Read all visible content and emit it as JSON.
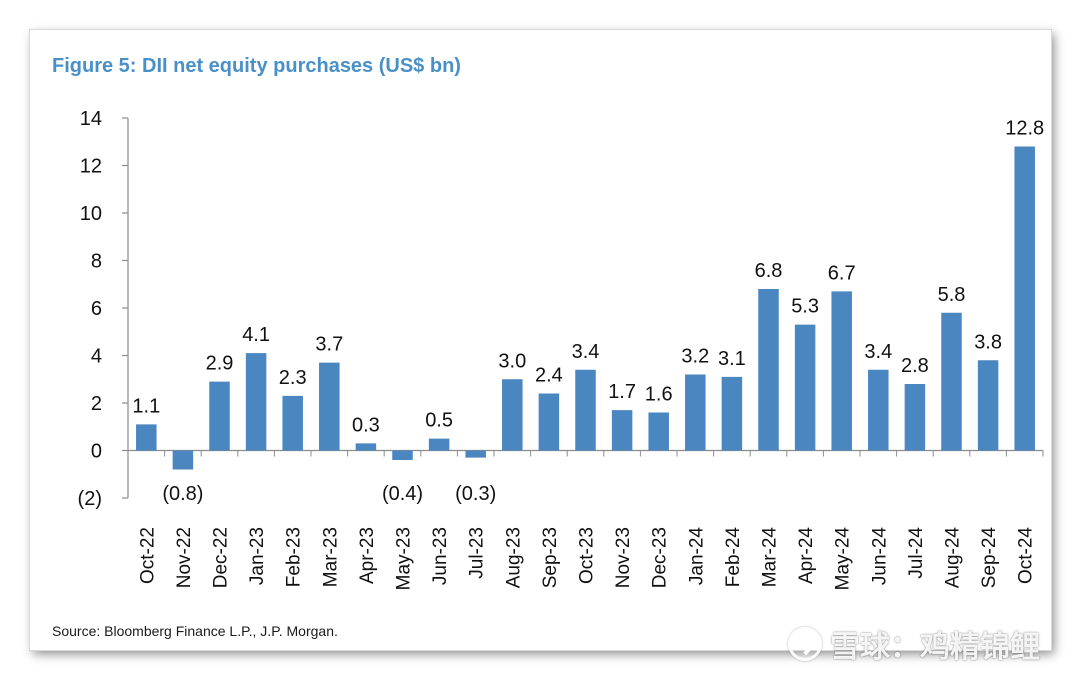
{
  "chart_data": {
    "type": "bar",
    "title": "Figure 5: DII net equity purchases (US$ bn)",
    "xlabel": "",
    "ylabel": "",
    "ylim": [
      -2,
      14
    ],
    "yticks": [
      14,
      12,
      10,
      8,
      6,
      4,
      2,
      0,
      -2
    ],
    "ytick_labels": [
      "14",
      "12",
      "10",
      "8",
      "6",
      "4",
      "2",
      "0",
      "(2)"
    ],
    "grid": false,
    "legend": "none",
    "bar_color": "#4a86c0",
    "negative_label_color": "#e8262c",
    "categories": [
      "Oct-22",
      "Nov-22",
      "Dec-22",
      "Jan-23",
      "Feb-23",
      "Mar-23",
      "Apr-23",
      "May-23",
      "Jun-23",
      "Jul-23",
      "Aug-23",
      "Sep-23",
      "Oct-23",
      "Nov-23",
      "Dec-23",
      "Jan-24",
      "Feb-24",
      "Mar-24",
      "Apr-24",
      "May-24",
      "Jun-24",
      "Jul-24",
      "Aug-24",
      "Sep-24",
      "Oct-24"
    ],
    "values": [
      1.1,
      -0.8,
      2.9,
      4.1,
      2.3,
      3.7,
      0.3,
      -0.4,
      0.5,
      -0.3,
      3.0,
      2.4,
      3.4,
      1.7,
      1.6,
      3.2,
      3.1,
      6.8,
      5.3,
      6.7,
      3.4,
      2.8,
      5.8,
      3.8,
      12.8
    ],
    "data_labels": [
      "1.1",
      "(0.8)",
      "2.9",
      "4.1",
      "2.3",
      "3.7",
      "0.3",
      "(0.4)",
      "0.5",
      "(0.3)",
      "3.0",
      "2.4",
      "3.4",
      "1.7",
      "1.6",
      "3.2",
      "3.1",
      "6.8",
      "5.3",
      "6.7",
      "3.4",
      "2.8",
      "5.8",
      "3.8",
      "12.8"
    ]
  },
  "source": "Source: Bloomberg Finance L.P., J.P. Morgan.",
  "watermark": "雪球：鸡精锦鲤"
}
